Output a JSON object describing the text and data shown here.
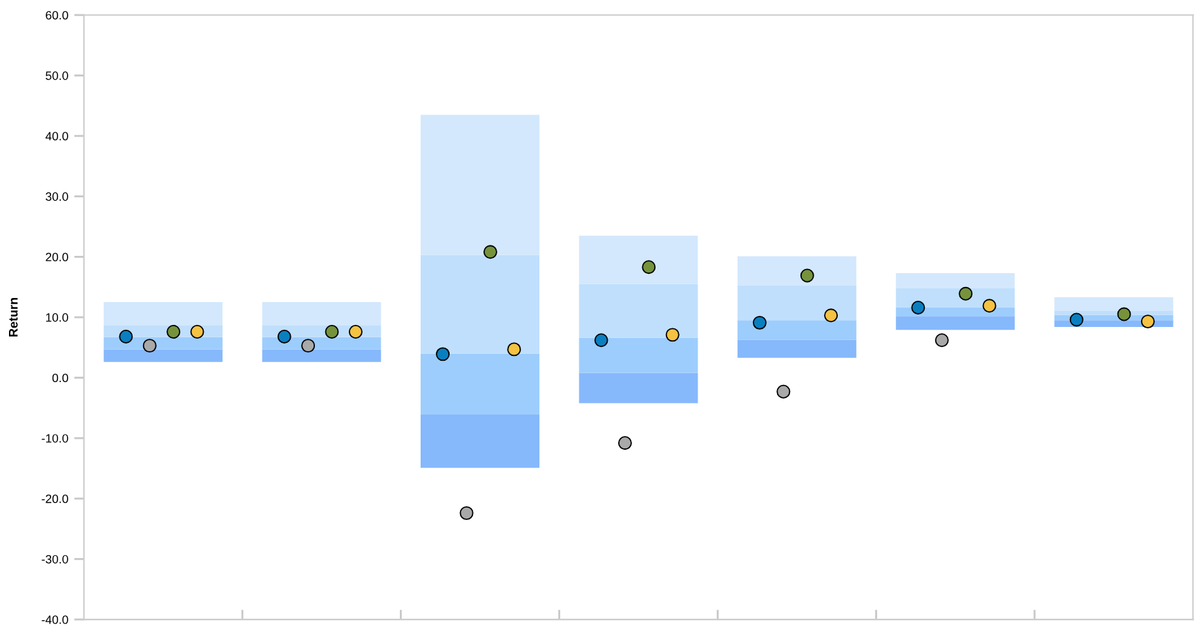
{
  "chart_data": {
    "type": "bar",
    "ylabel": "Return",
    "categories": [
      null,
      null,
      null,
      null,
      null,
      null,
      null
    ],
    "series": [
      {
        "color": "#86b8fc",
        "base": [
          2.6,
          2.6,
          -14.9,
          -4.2,
          3.3,
          7.9,
          8.4
        ],
        "values": [
          2.1,
          2.1,
          8.8,
          5.0,
          3.0,
          2.3,
          1.1
        ]
      },
      {
        "color": "#9dcdfc",
        "base": [
          4.7,
          4.7,
          -6.1,
          0.8,
          6.3,
          10.2,
          9.5
        ],
        "values": [
          2.0,
          2.0,
          10.1,
          5.8,
          3.2,
          1.4,
          0.9
        ]
      },
      {
        "color": "#c0dffc",
        "base": [
          6.7,
          6.7,
          4.0,
          6.6,
          9.5,
          11.6,
          10.4
        ],
        "values": [
          2.0,
          2.0,
          16.3,
          8.9,
          5.8,
          3.2,
          0.7
        ]
      },
      {
        "color": "#d3e8fc",
        "base": [
          8.7,
          8.7,
          20.3,
          15.5,
          15.3,
          14.8,
          11.1
        ],
        "values": [
          3.8,
          3.8,
          23.2,
          8.0,
          4.8,
          2.5,
          2.2
        ]
      },
      {
        "type": "scatter",
        "color": "#0a7fc0",
        "values": [
          6.8,
          6.8,
          3.9,
          6.2,
          9.1,
          11.6,
          9.6
        ]
      },
      {
        "type": "scatter",
        "color": "#a9a9a9",
        "values": [
          5.3,
          5.3,
          -22.4,
          -10.8,
          -2.3,
          6.2,
          null
        ]
      },
      {
        "type": "scatter",
        "color": "#76933c",
        "values": [
          7.6,
          7.6,
          20.8,
          18.3,
          16.9,
          13.9,
          10.5
        ]
      },
      {
        "type": "scatter",
        "color": "#f5c242",
        "values": [
          7.6,
          7.6,
          4.7,
          7.1,
          10.3,
          11.9,
          9.3
        ]
      }
    ],
    "ylim": [
      -40,
      60
    ],
    "yticks": [
      {
        "value": -40,
        "label": "-40.0"
      },
      {
        "value": -30,
        "label": "-30.0"
      },
      {
        "value": -20,
        "label": "-20.0"
      },
      {
        "value": -10,
        "label": "-10.0"
      },
      {
        "value": 0,
        "label": "0.0"
      },
      {
        "value": 10,
        "label": "10.0"
      },
      {
        "value": 20,
        "label": "20.0"
      },
      {
        "value": 30,
        "label": "30.0"
      },
      {
        "value": 40,
        "label": "40.0"
      },
      {
        "value": 50,
        "label": "50.0"
      },
      {
        "value": 60,
        "label": "60.0"
      }
    ],
    "grid": false,
    "legend": false,
    "marker": "circle"
  }
}
